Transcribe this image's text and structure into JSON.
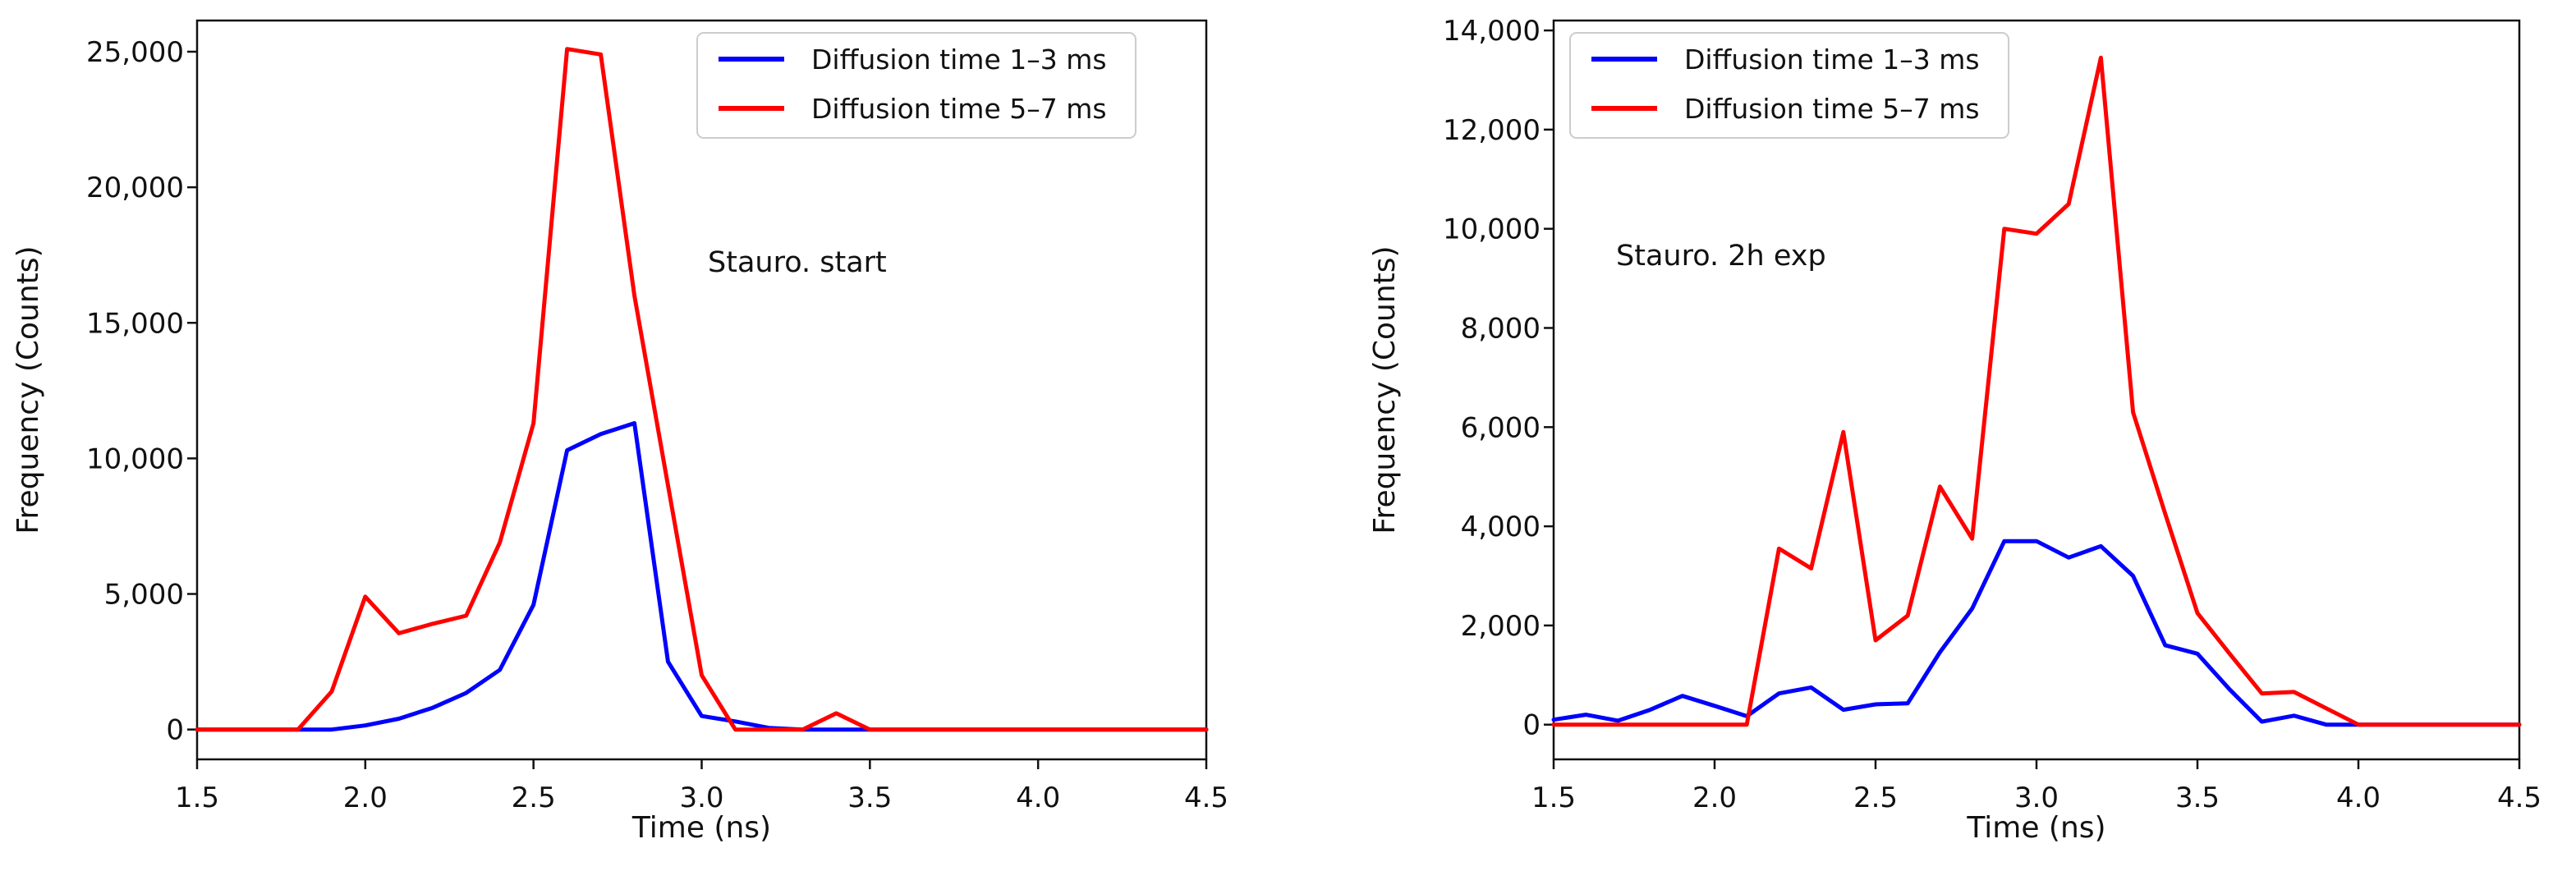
{
  "figure": {
    "background": "#ffffff"
  },
  "legend": {
    "entries": [
      {
        "label": "Diffusion time 1–3 ms",
        "color": "#0000ff"
      },
      {
        "label": "Diffusion time 5–7 ms",
        "color": "#ff0000"
      }
    ]
  },
  "chart_data": [
    {
      "type": "line",
      "title": "",
      "annotation": "Stauro. start",
      "xlabel": "Time (ns)",
      "ylabel": "Frequency (Counts)",
      "xlim": [
        1.5,
        4.5
      ],
      "ylim": [
        -1100,
        26150
      ],
      "grid": false,
      "legend_position": "upper left",
      "xticks": [
        1.5,
        2.0,
        2.5,
        3.0,
        3.5,
        4.0,
        4.5
      ],
      "xticklabels": [
        "1.5",
        "2.0",
        "2.5",
        "3.0",
        "3.5",
        "4.0",
        "4.5"
      ],
      "yticks": [
        0,
        5000,
        10000,
        15000,
        20000,
        25000
      ],
      "yticklabels": [
        "0",
        "5,000",
        "10,000",
        "15,000",
        "20,000",
        "25,000"
      ],
      "x": [
        1.5,
        1.6,
        1.7,
        1.8,
        1.9,
        2.0,
        2.1,
        2.2,
        2.3,
        2.4,
        2.5,
        2.6,
        2.7,
        2.8,
        2.9,
        3.0,
        3.1,
        3.2,
        3.3,
        3.4,
        3.5,
        3.6,
        3.7,
        3.8,
        3.9,
        4.0,
        4.1,
        4.2,
        4.3,
        4.4,
        4.5
      ],
      "series": [
        {
          "name": "Diffusion time 1–3 ms",
          "color": "#0000ff",
          "values": [
            0,
            0,
            0,
            0,
            0,
            150,
            400,
            800,
            1350,
            2200,
            4600,
            10300,
            10900,
            11300,
            2500,
            500,
            300,
            60,
            0,
            0,
            0,
            0,
            0,
            0,
            0,
            0,
            0,
            0,
            0,
            0,
            0
          ]
        },
        {
          "name": "Diffusion time 5–7 ms",
          "color": "#ff0000",
          "values": [
            0,
            0,
            0,
            0,
            1400,
            4900,
            3550,
            3900,
            4200,
            6900,
            11300,
            25100,
            24900,
            16000,
            9000,
            2000,
            0,
            0,
            0,
            600,
            0,
            0,
            0,
            0,
            0,
            0,
            0,
            0,
            0,
            0,
            0
          ]
        }
      ]
    },
    {
      "type": "line",
      "title": "",
      "annotation": "Stauro. 2h exp",
      "xlabel": "Time (ns)",
      "ylabel": "Frequency (Counts)",
      "xlim": [
        1.5,
        4.5
      ],
      "ylim": [
        -700,
        14200
      ],
      "grid": false,
      "legend_position": "upper left",
      "xticks": [
        1.5,
        2.0,
        2.5,
        3.0,
        3.5,
        4.0,
        4.5
      ],
      "xticklabels": [
        "1.5",
        "2.0",
        "2.5",
        "3.0",
        "3.5",
        "4.0",
        "4.5"
      ],
      "yticks": [
        0,
        2000,
        4000,
        6000,
        8000,
        10000,
        12000,
        14000
      ],
      "yticklabels": [
        "0",
        "2,000",
        "4,000",
        "6,000",
        "8,000",
        "10,000",
        "12,000",
        "14,000"
      ],
      "x": [
        1.5,
        1.6,
        1.7,
        1.8,
        1.9,
        2.0,
        2.1,
        2.2,
        2.3,
        2.4,
        2.5,
        2.6,
        2.7,
        2.8,
        2.9,
        3.0,
        3.1,
        3.2,
        3.3,
        3.4,
        3.5,
        3.6,
        3.7,
        3.8,
        3.9,
        4.0,
        4.1,
        4.2,
        4.3,
        4.4,
        4.5
      ],
      "series": [
        {
          "name": "Diffusion time 1–3 ms",
          "color": "#0000ff",
          "values": [
            100,
            200,
            80,
            300,
            580,
            380,
            170,
            630,
            750,
            300,
            410,
            430,
            1460,
            2340,
            3700,
            3700,
            3370,
            3600,
            3000,
            1600,
            1430,
            710,
            60,
            180,
            0,
            0,
            0,
            0,
            0,
            0,
            0
          ]
        },
        {
          "name": "Diffusion time 5–7 ms",
          "color": "#ff0000",
          "values": [
            0,
            0,
            0,
            0,
            0,
            0,
            0,
            3550,
            3150,
            5900,
            1700,
            2200,
            4800,
            3750,
            10000,
            9900,
            10500,
            13450,
            6300,
            4250,
            2250,
            1430,
            630,
            660,
            330,
            0,
            0,
            0,
            0,
            0,
            0
          ]
        }
      ]
    }
  ]
}
